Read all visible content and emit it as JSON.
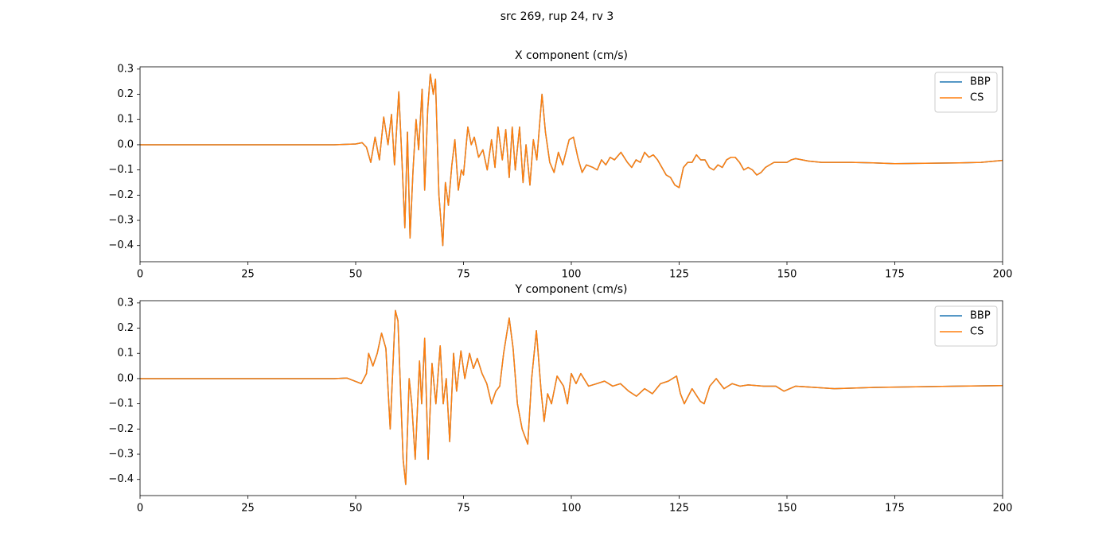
{
  "title": "src 269, rup 24, rv 3",
  "chart_data": [
    {
      "type": "line",
      "title": "X component (cm/s)",
      "x": [
        0,
        45,
        50,
        51.5,
        52.5,
        53.5,
        54.5,
        55.5,
        56.5,
        57.5,
        58.3,
        59,
        60,
        60.7,
        61.4,
        62,
        62.6,
        63.3,
        64,
        64.6,
        65.4,
        66,
        66.7,
        67.3,
        68,
        68.5,
        69.3,
        70.2,
        70.8,
        71.5,
        72.3,
        73,
        73.8,
        74.5,
        75,
        76,
        76.8,
        77.5,
        78.5,
        79.5,
        80.5,
        81.5,
        82.3,
        83,
        84,
        84.8,
        85.6,
        86.3,
        87,
        88,
        88.8,
        89.5,
        90.4,
        91.2,
        92,
        93.2,
        94,
        95,
        96,
        97,
        98,
        99.5,
        100.5,
        101.5,
        102.5,
        103.5,
        105,
        106,
        107,
        108,
        109,
        110,
        111.5,
        113,
        114,
        115,
        116,
        117,
        118,
        119,
        120,
        121,
        122,
        123,
        124,
        125,
        126,
        127,
        128,
        129,
        130,
        131,
        132,
        133,
        134,
        135,
        136,
        137,
        138,
        139,
        140,
        141,
        142,
        143,
        144,
        145,
        146,
        147,
        148,
        150,
        151,
        152,
        155,
        158,
        160,
        165,
        170,
        175,
        180,
        190,
        195,
        200
      ],
      "series": [
        {
          "name": "BBP",
          "color": "#1f77b4",
          "values": [
            0,
            0,
            0.003,
            0.008,
            -0.01,
            -0.07,
            0.03,
            -0.06,
            0.11,
            0.0,
            0.12,
            -0.08,
            0.21,
            -0.05,
            -0.33,
            0.05,
            -0.37,
            -0.1,
            0.1,
            -0.02,
            0.22,
            -0.18,
            0.14,
            0.28,
            0.2,
            0.26,
            -0.2,
            -0.4,
            -0.15,
            -0.24,
            -0.08,
            0.02,
            -0.18,
            -0.1,
            -0.12,
            0.07,
            0.0,
            0.03,
            -0.05,
            -0.02,
            -0.1,
            0.02,
            -0.09,
            0.07,
            -0.06,
            0.06,
            -0.13,
            0.07,
            -0.1,
            0.07,
            -0.15,
            0.0,
            -0.16,
            0.02,
            -0.06,
            0.2,
            0.05,
            -0.07,
            -0.11,
            -0.03,
            -0.08,
            0.02,
            0.03,
            -0.05,
            -0.11,
            -0.08,
            -0.09,
            -0.1,
            -0.06,
            -0.08,
            -0.05,
            -0.06,
            -0.03,
            -0.07,
            -0.09,
            -0.06,
            -0.07,
            -0.03,
            -0.05,
            -0.04,
            -0.06,
            -0.09,
            -0.12,
            -0.13,
            -0.16,
            -0.17,
            -0.09,
            -0.07,
            -0.07,
            -0.04,
            -0.06,
            -0.06,
            -0.09,
            -0.1,
            -0.08,
            -0.09,
            -0.06,
            -0.05,
            -0.05,
            -0.07,
            -0.1,
            -0.09,
            -0.1,
            -0.12,
            -0.11,
            -0.09,
            -0.08,
            -0.07,
            -0.07,
            -0.07,
            -0.06,
            -0.055,
            -0.065,
            -0.07,
            -0.07,
            -0.07,
            -0.072,
            -0.075,
            -0.074,
            -0.072,
            -0.07,
            -0.062
          ]
        },
        {
          "name": "CS",
          "color": "#ff7f0e",
          "values": [
            0,
            0,
            0.003,
            0.008,
            -0.01,
            -0.07,
            0.03,
            -0.06,
            0.11,
            0.0,
            0.12,
            -0.08,
            0.21,
            -0.05,
            -0.33,
            0.05,
            -0.37,
            -0.1,
            0.1,
            -0.02,
            0.22,
            -0.18,
            0.14,
            0.28,
            0.2,
            0.26,
            -0.2,
            -0.4,
            -0.15,
            -0.24,
            -0.08,
            0.02,
            -0.18,
            -0.1,
            -0.12,
            0.07,
            0.0,
            0.03,
            -0.05,
            -0.02,
            -0.1,
            0.02,
            -0.09,
            0.07,
            -0.06,
            0.06,
            -0.13,
            0.07,
            -0.1,
            0.07,
            -0.15,
            0.0,
            -0.16,
            0.02,
            -0.06,
            0.2,
            0.05,
            -0.07,
            -0.11,
            -0.03,
            -0.08,
            0.02,
            0.03,
            -0.05,
            -0.11,
            -0.08,
            -0.09,
            -0.1,
            -0.06,
            -0.08,
            -0.05,
            -0.06,
            -0.03,
            -0.07,
            -0.09,
            -0.06,
            -0.07,
            -0.03,
            -0.05,
            -0.04,
            -0.06,
            -0.09,
            -0.12,
            -0.13,
            -0.16,
            -0.17,
            -0.09,
            -0.07,
            -0.07,
            -0.04,
            -0.06,
            -0.06,
            -0.09,
            -0.1,
            -0.08,
            -0.09,
            -0.06,
            -0.05,
            -0.05,
            -0.07,
            -0.1,
            -0.09,
            -0.1,
            -0.12,
            -0.11,
            -0.09,
            -0.08,
            -0.07,
            -0.07,
            -0.07,
            -0.06,
            -0.055,
            -0.065,
            -0.07,
            -0.07,
            -0.07,
            -0.072,
            -0.075,
            -0.074,
            -0.072,
            -0.07,
            -0.062
          ]
        }
      ],
      "xlim": [
        0,
        200
      ],
      "xticks": [
        0,
        25,
        50,
        75,
        100,
        125,
        150,
        175,
        200
      ],
      "ylim": [
        -0.464,
        0.309
      ],
      "yticks": [
        {
          "value": -0.4,
          "label": "−0.4"
        },
        {
          "value": -0.3,
          "label": "−0.3"
        },
        {
          "value": -0.2,
          "label": "−0.2"
        },
        {
          "value": -0.1,
          "label": "−0.1"
        },
        {
          "value": 0,
          "label": "0.0"
        },
        0.1,
        0.2,
        0.3
      ],
      "legend": "upper right"
    },
    {
      "type": "line",
      "title": "Y component (cm/s)",
      "x": [
        0,
        45,
        48,
        51.3,
        52.5,
        53,
        54,
        55,
        56,
        57,
        58,
        59.2,
        59.8,
        61,
        61.6,
        62.4,
        63,
        63.8,
        64.8,
        65.3,
        66,
        66.8,
        67.7,
        68.6,
        69.6,
        70.3,
        71,
        71.8,
        72.7,
        73.4,
        74.4,
        75.3,
        76.4,
        77.3,
        78.2,
        79.3,
        80.4,
        81.5,
        82.5,
        83.4,
        84.3,
        85.6,
        86.5,
        87.5,
        88.6,
        89.9,
        90.8,
        91.9,
        93,
        93.7,
        94.5,
        95.4,
        96.7,
        98.2,
        99.1,
        100,
        101.1,
        102.2,
        104,
        105.9,
        107.7,
        109.6,
        111.4,
        113.3,
        115.1,
        117,
        118.8,
        120.7,
        122.5,
        124.4,
        125.3,
        126.2,
        128,
        129.9,
        130.8,
        132.1,
        133.6,
        135.4,
        137.3,
        139.1,
        141,
        144.6,
        147.4,
        149.3,
        152,
        161,
        170.5,
        189,
        200
      ],
      "series": [
        {
          "name": "BBP",
          "color": "#1f77b4",
          "values": [
            0,
            0,
            0.002,
            -0.02,
            0.02,
            0.1,
            0.05,
            0.1,
            0.18,
            0.12,
            -0.2,
            0.27,
            0.23,
            -0.32,
            -0.42,
            0.0,
            -0.1,
            -0.32,
            0.07,
            -0.1,
            0.16,
            -0.32,
            0.06,
            -0.1,
            0.13,
            -0.1,
            0.0,
            -0.25,
            0.1,
            -0.05,
            0.11,
            0.0,
            0.1,
            0.04,
            0.08,
            0.02,
            -0.02,
            -0.1,
            -0.05,
            -0.03,
            0.1,
            0.24,
            0.12,
            -0.1,
            -0.2,
            -0.26,
            0.0,
            0.19,
            -0.05,
            -0.17,
            -0.06,
            -0.1,
            0.01,
            -0.03,
            -0.1,
            0.02,
            -0.02,
            0.02,
            -0.03,
            -0.02,
            -0.01,
            -0.03,
            -0.02,
            -0.05,
            -0.07,
            -0.04,
            -0.06,
            -0.02,
            -0.01,
            0.01,
            -0.06,
            -0.1,
            -0.04,
            -0.09,
            -0.1,
            -0.03,
            0.0,
            -0.04,
            -0.02,
            -0.03,
            -0.025,
            -0.03,
            -0.03,
            -0.05,
            -0.03,
            -0.04,
            -0.035,
            -0.03,
            -0.028
          ]
        },
        {
          "name": "CS",
          "color": "#ff7f0e",
          "values": [
            0,
            0,
            0.002,
            -0.02,
            0.02,
            0.1,
            0.05,
            0.1,
            0.18,
            0.12,
            -0.2,
            0.27,
            0.23,
            -0.32,
            -0.42,
            0.0,
            -0.1,
            -0.32,
            0.07,
            -0.1,
            0.16,
            -0.32,
            0.06,
            -0.1,
            0.13,
            -0.1,
            0.0,
            -0.25,
            0.1,
            -0.05,
            0.11,
            0.0,
            0.1,
            0.04,
            0.08,
            0.02,
            -0.02,
            -0.1,
            -0.05,
            -0.03,
            0.1,
            0.24,
            0.12,
            -0.1,
            -0.2,
            -0.26,
            0.0,
            0.19,
            -0.05,
            -0.17,
            -0.06,
            -0.1,
            0.01,
            -0.03,
            -0.1,
            0.02,
            -0.02,
            0.02,
            -0.03,
            -0.02,
            -0.01,
            -0.03,
            -0.02,
            -0.05,
            -0.07,
            -0.04,
            -0.06,
            -0.02,
            -0.01,
            0.01,
            -0.06,
            -0.1,
            -0.04,
            -0.09,
            -0.1,
            -0.03,
            0.0,
            -0.04,
            -0.02,
            -0.03,
            -0.025,
            -0.03,
            -0.03,
            -0.05,
            -0.03,
            -0.04,
            -0.035,
            -0.03,
            -0.028
          ]
        }
      ],
      "xlim": [
        0,
        200
      ],
      "xticks": [
        0,
        25,
        50,
        75,
        100,
        125,
        150,
        175,
        200
      ],
      "ylim": [
        -0.464,
        0.309
      ],
      "yticks": [
        {
          "value": -0.4,
          "label": "−0.4"
        },
        {
          "value": -0.3,
          "label": "−0.3"
        },
        {
          "value": -0.2,
          "label": "−0.2"
        },
        {
          "value": -0.1,
          "label": "−0.1"
        },
        {
          "value": 0,
          "label": "0.0"
        },
        0.1,
        0.2,
        0.3
      ],
      "legend": "upper right"
    }
  ]
}
